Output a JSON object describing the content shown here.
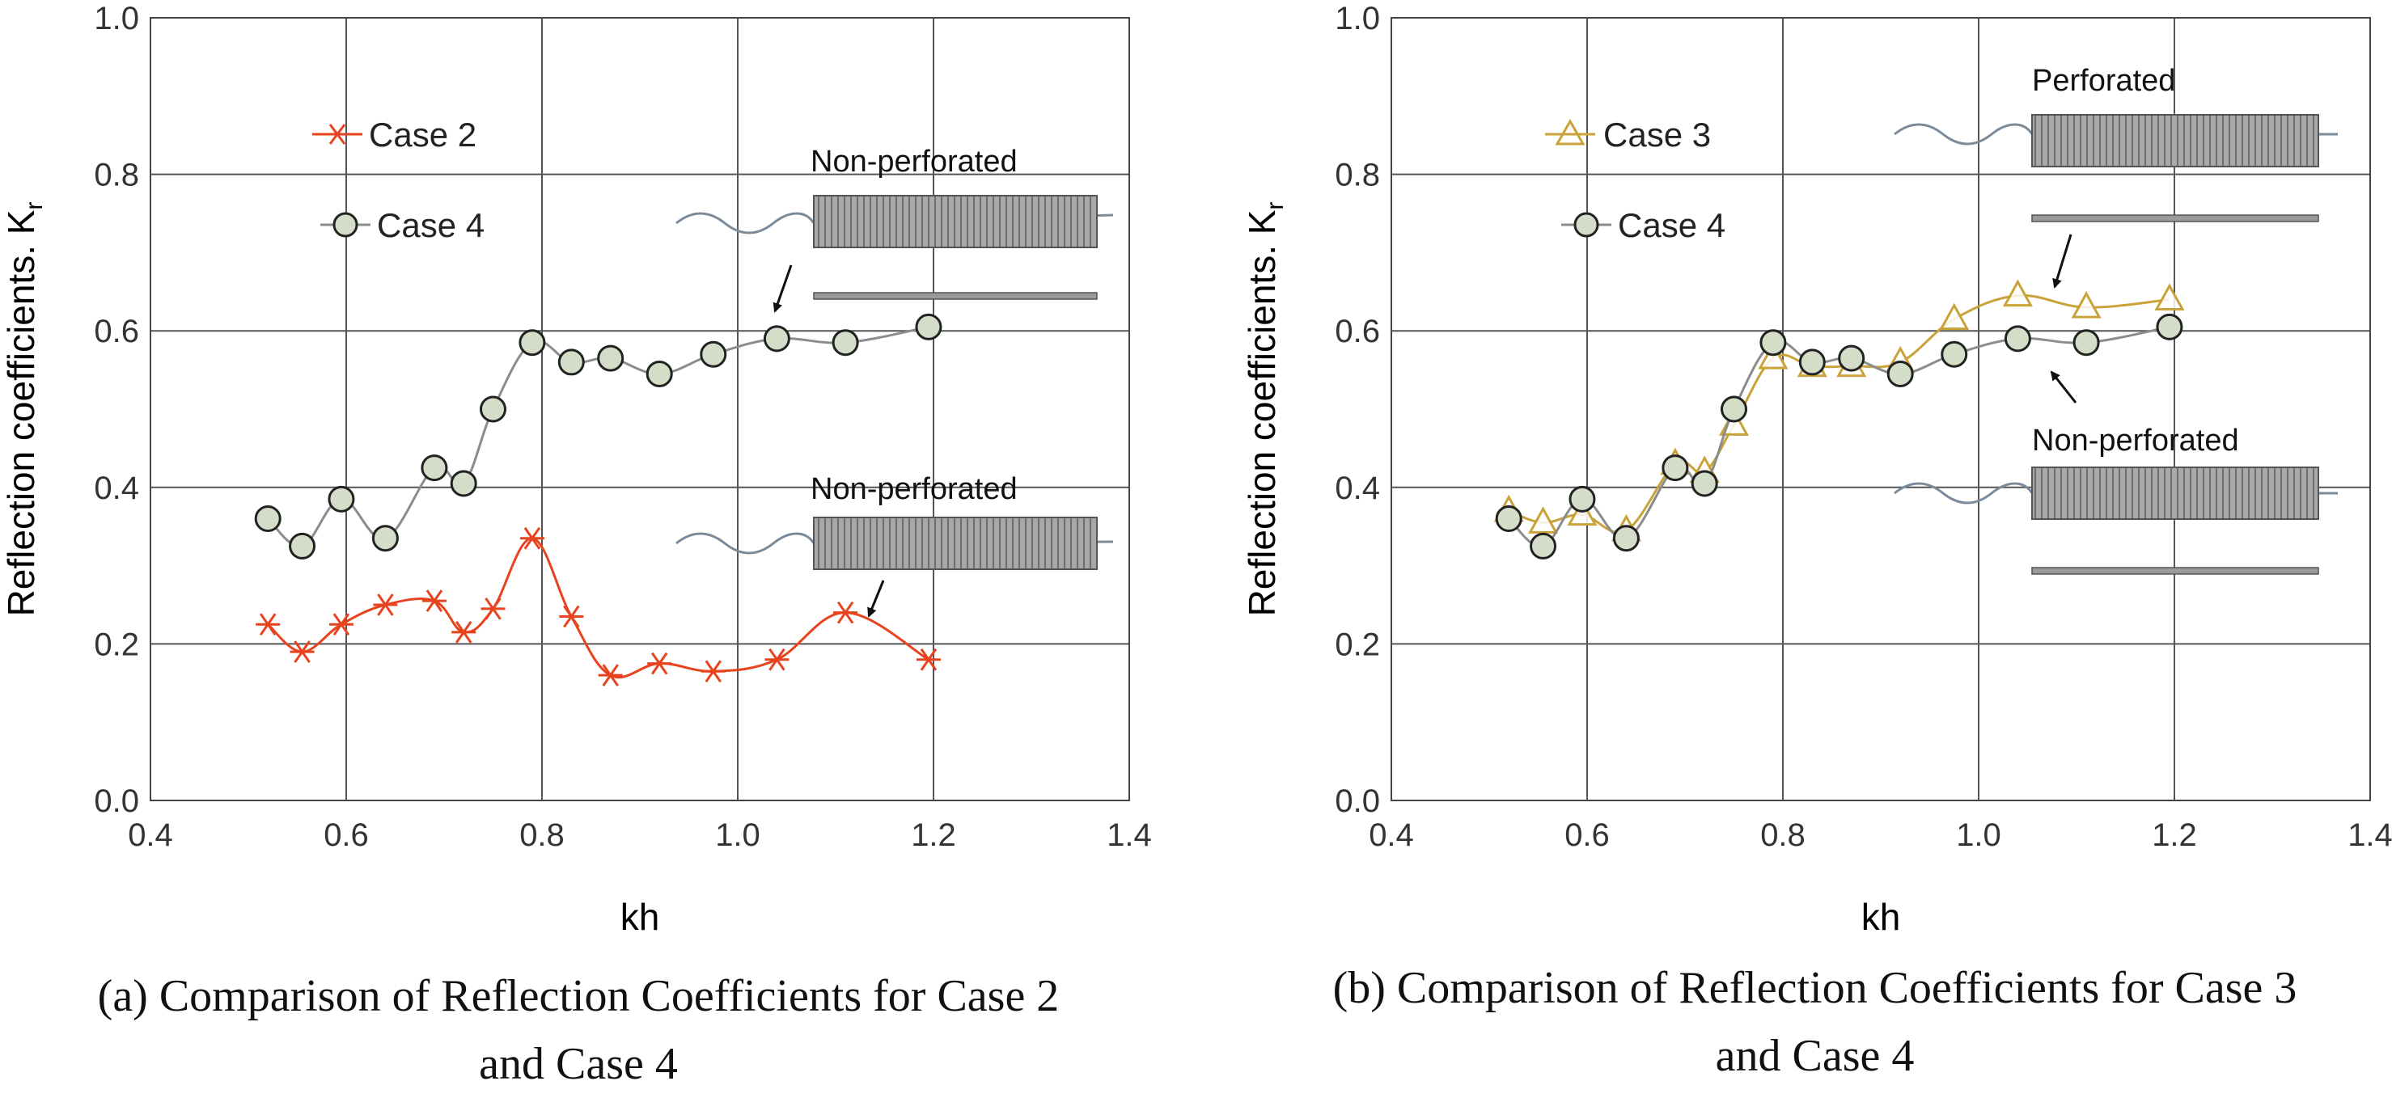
{
  "chart_data": [
    {
      "type": "line",
      "panel": "a",
      "xlabel": "kh",
      "ylabel": "Reflection coefficients. K",
      "ylabel_sub": "r",
      "xlim": [
        0.4,
        1.4
      ],
      "ylim": [
        0.0,
        1.0
      ],
      "xticks": [
        "0.4",
        "0.6",
        "0.8",
        "1.0",
        "1.2",
        "1.4"
      ],
      "yticks": [
        "0.0",
        "0.2",
        "0.4",
        "0.6",
        "0.8",
        "1.0"
      ],
      "grid": true,
      "legend_position": "top-left",
      "series": [
        {
          "name": "Case 2",
          "marker": "asterisk",
          "color": "#E8431F",
          "x": [
            0.52,
            0.555,
            0.595,
            0.64,
            0.69,
            0.72,
            0.75,
            0.79,
            0.83,
            0.87,
            0.92,
            0.975,
            1.04,
            1.11,
            1.195
          ],
          "y": [
            0.225,
            0.19,
            0.225,
            0.25,
            0.255,
            0.215,
            0.245,
            0.335,
            0.235,
            0.16,
            0.175,
            0.165,
            0.18,
            0.24,
            0.18
          ]
        },
        {
          "name": "Case 4",
          "marker": "circle",
          "color": "#8C8C8C",
          "x": [
            0.52,
            0.555,
            0.595,
            0.64,
            0.69,
            0.72,
            0.75,
            0.79,
            0.83,
            0.87,
            0.92,
            0.975,
            1.04,
            1.11,
            1.195
          ],
          "y": [
            0.36,
            0.325,
            0.385,
            0.335,
            0.425,
            0.405,
            0.5,
            0.585,
            0.56,
            0.565,
            0.545,
            0.57,
            0.59,
            0.585,
            0.605
          ]
        }
      ],
      "annotations": [
        "Non-perforated",
        "Non-perforated"
      ]
    },
    {
      "type": "line",
      "panel": "b",
      "xlabel": "kh",
      "ylabel": "Reflection coefficients. K",
      "ylabel_sub": "r",
      "xlim": [
        0.4,
        1.4
      ],
      "ylim": [
        0.0,
        1.0
      ],
      "xticks": [
        "0.4",
        "0.6",
        "0.8",
        "1.0",
        "1.2",
        "1.4"
      ],
      "yticks": [
        "0.0",
        "0.2",
        "0.4",
        "0.6",
        "0.8",
        "1.0"
      ],
      "grid": true,
      "legend_position": "top-left",
      "series": [
        {
          "name": "Case 3",
          "marker": "triangle",
          "color": "#C9A23A",
          "x": [
            0.52,
            0.555,
            0.595,
            0.64,
            0.69,
            0.72,
            0.75,
            0.79,
            0.83,
            0.87,
            0.92,
            0.975,
            1.04,
            1.11,
            1.195
          ],
          "y": [
            0.37,
            0.355,
            0.365,
            0.345,
            0.43,
            0.42,
            0.48,
            0.565,
            0.555,
            0.555,
            0.56,
            0.615,
            0.645,
            0.63,
            0.64
          ]
        },
        {
          "name": "Case 4",
          "marker": "circle",
          "color": "#8C8C8C",
          "x": [
            0.52,
            0.555,
            0.595,
            0.64,
            0.69,
            0.72,
            0.75,
            0.79,
            0.83,
            0.87,
            0.92,
            0.975,
            1.04,
            1.11,
            1.195
          ],
          "y": [
            0.36,
            0.325,
            0.385,
            0.335,
            0.425,
            0.405,
            0.5,
            0.585,
            0.56,
            0.565,
            0.545,
            0.57,
            0.59,
            0.585,
            0.605
          ]
        }
      ],
      "annotations": [
        "Perforated",
        "Non-perforated"
      ]
    }
  ],
  "captions": {
    "a_line1": "(a) Comparison of Reflection Coefficients for Case 2",
    "a_line2": "and Case 4",
    "b_line1": "(b) Comparison of Reflection Coefficients for Case 3",
    "b_line2": "and Case 4"
  },
  "styles": {
    "marker_fill": "#D3DDC8",
    "grid_color": "#555555",
    "structure_fill": "#9A9A9A",
    "wave_color": "#7A8A99"
  }
}
